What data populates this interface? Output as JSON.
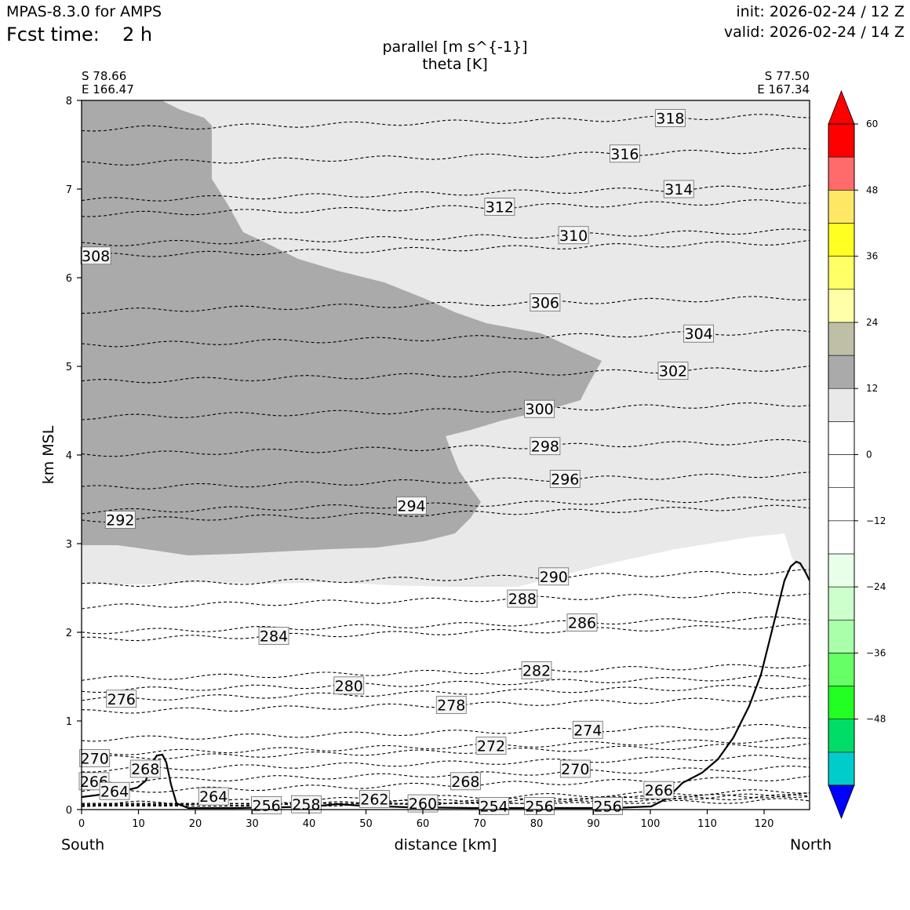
{
  "header": {
    "model": "MPAS-8.3.0 for AMPS",
    "fcst_label": "Fcst time:",
    "fcst_value": "2 h",
    "init": "init: 2026-02-24 / 12 Z",
    "valid": "valid: 2026-02-24 / 14 Z"
  },
  "endpoints": {
    "left_lat": "S 78.66",
    "left_lon": "E 166.47",
    "right_lat": "S 77.50",
    "right_lon": "E 167.34",
    "left_dir": "South",
    "right_dir": "North"
  },
  "chart_data": {
    "type": "cross-section (filled contour + line contour)",
    "title": "parallel [m s^{-1}]",
    "subtitle": "theta [K]",
    "xlabel": "distance [km]",
    "ylabel": "km MSL",
    "xlim": [
      0,
      128
    ],
    "ylim": [
      0,
      8
    ],
    "xticks": [
      0,
      10,
      20,
      30,
      40,
      50,
      60,
      70,
      80,
      90,
      100,
      110,
      120
    ],
    "yticks": [
      0,
      1,
      2,
      3,
      4,
      5,
      6,
      7,
      8
    ],
    "shading": {
      "levels": [
        -60,
        -54,
        -48,
        -42,
        -36,
        -30,
        -24,
        -18,
        -12,
        -6,
        0,
        6,
        12,
        18,
        24,
        30,
        36,
        42,
        48,
        54,
        60
      ],
      "colors": [
        "#0000ff",
        "#00cccc",
        "#00dd66",
        "#22ff22",
        "#66ff66",
        "#aaffaa",
        "#ccffcc",
        "#e8ffe8",
        "#ffffff",
        "#ffffff",
        "#ffffff",
        "#ffffff",
        "#e9e9e9",
        "#aaaaaa",
        "#bfbfa8",
        "#ffffa8",
        "#ffff66",
        "#ffff22",
        "#ffe866",
        "#ff6a6a",
        "#ff0000"
      ],
      "cbar_ticks": [
        "60",
        "48",
        "36",
        "24",
        "12",
        "0",
        "−12",
        "−24",
        "−36",
        "−48"
      ]
    },
    "theta_labels": [
      {
        "value": "318",
        "x": 103.5,
        "y": 7.8
      },
      {
        "value": "316",
        "x": 95.5,
        "y": 7.4
      },
      {
        "value": "314",
        "x": 105,
        "y": 7.0
      },
      {
        "value": "312",
        "x": 73.5,
        "y": 6.8
      },
      {
        "value": "310",
        "x": 86.5,
        "y": 6.48
      },
      {
        "value": "308",
        "x": 2.5,
        "y": 6.25
      },
      {
        "value": "306",
        "x": 81.5,
        "y": 5.72
      },
      {
        "value": "304",
        "x": 108.5,
        "y": 5.37
      },
      {
        "value": "302",
        "x": 104,
        "y": 4.95
      },
      {
        "value": "300",
        "x": 80.5,
        "y": 4.52
      },
      {
        "value": "298",
        "x": 81.5,
        "y": 4.1
      },
      {
        "value": "296",
        "x": 85,
        "y": 3.73
      },
      {
        "value": "294",
        "x": 58,
        "y": 3.43
      },
      {
        "value": "292",
        "x": 6.8,
        "y": 3.27
      },
      {
        "value": "290",
        "x": 83,
        "y": 2.63
      },
      {
        "value": "288",
        "x": 77.5,
        "y": 2.38
      },
      {
        "value": "286",
        "x": 88,
        "y": 2.11
      },
      {
        "value": "284",
        "x": 33.8,
        "y": 1.96
      },
      {
        "value": "282",
        "x": 80,
        "y": 1.57
      },
      {
        "value": "280",
        "x": 47,
        "y": 1.4
      },
      {
        "value": "278",
        "x": 65,
        "y": 1.18
      },
      {
        "value": "276",
        "x": 7,
        "y": 1.25
      },
      {
        "value": "274",
        "x": 89,
        "y": 0.9
      },
      {
        "value": "272",
        "x": 72,
        "y": 0.72
      },
      {
        "value": "270",
        "x": 2.3,
        "y": 0.58
      },
      {
        "value": "270",
        "x": 86.8,
        "y": 0.46
      },
      {
        "value": "268",
        "x": 11.2,
        "y": 0.46
      },
      {
        "value": "268",
        "x": 67.5,
        "y": 0.32
      },
      {
        "value": "266",
        "x": 2.2,
        "y": 0.32
      },
      {
        "value": "266",
        "x": 101.5,
        "y": 0.22
      },
      {
        "value": "264",
        "x": 5.8,
        "y": 0.21
      },
      {
        "value": "264",
        "x": 23.2,
        "y": 0.15
      },
      {
        "value": "262",
        "x": 51.5,
        "y": 0.12
      },
      {
        "value": "260",
        "x": 60,
        "y": 0.07
      },
      {
        "value": "258",
        "x": 39.5,
        "y": 0.06
      },
      {
        "value": "256",
        "x": 32.5,
        "y": 0.05
      },
      {
        "value": "256",
        "x": 80.5,
        "y": 0.04
      },
      {
        "value": "256",
        "x": 92.5,
        "y": 0.04
      },
      {
        "value": "254",
        "x": 72.5,
        "y": 0.04
      }
    ]
  }
}
